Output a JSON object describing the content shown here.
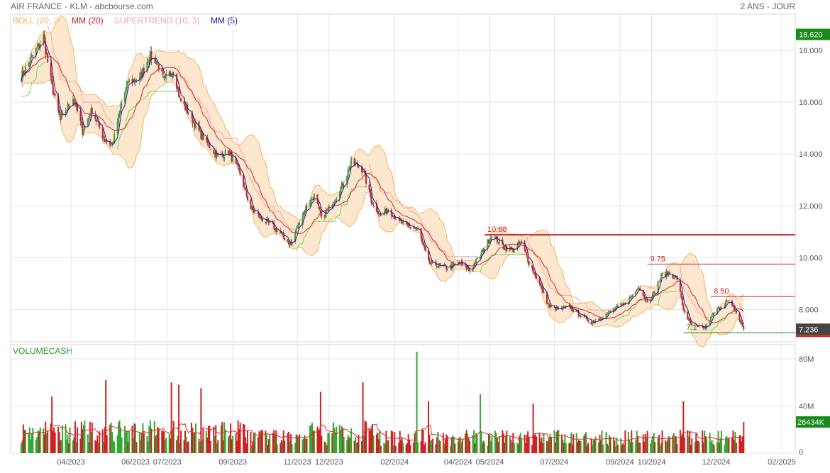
{
  "header": {
    "title": "AIR FRANCE - KLM - abcbourse.com",
    "period": "2 ANS - JOUR"
  },
  "legend": [
    {
      "label": "BOLL (20, 2)",
      "color": "#f5b266"
    },
    {
      "label": "MM (20)",
      "color": "#d42020"
    },
    {
      "label": "SUPERTREND (10, 3)",
      "color": "#f2a6a6"
    },
    {
      "label": "MM (5)",
      "color": "#1a1aa6"
    }
  ],
  "colors": {
    "up": "#33a833",
    "down": "#cc2222",
    "grid": "#e4e4e4",
    "boll_fill": "#fde3c6",
    "boll_line": "#f5b266",
    "supertrend_up": "#66dd66",
    "supertrend_down": "#f2a6a6",
    "badge": "#1a8a1a"
  },
  "chart_data": [
    {
      "type": "line",
      "name": "price",
      "y_ticks": [
        "18.000",
        "16.000",
        "14.000",
        "12.000",
        "10.000",
        "8.000"
      ],
      "ylim": [
        6.75,
        19.4
      ],
      "x_ticks": [
        "04/2023",
        "06/2023",
        "07/2023",
        "09/2023",
        "11/2023",
        "12/2023",
        "02/2024",
        "04/2024",
        "05/2024",
        "07/2024",
        "09/2024",
        "10/2024",
        "12/2024",
        "02/2025"
      ],
      "x_tick_dates": [
        "2023-04-01",
        "2023-06-01",
        "2023-07-01",
        "2023-09-01",
        "2023-11-01",
        "2023-12-01",
        "2024-02-01",
        "2024-04-01",
        "2024-05-01",
        "2024-07-01",
        "2024-09-01",
        "2024-10-01",
        "2024-12-01",
        "2025-02-01"
      ],
      "series_close": {
        "name": "",
        "points": [
          [
            "2023-02-13",
            17.0
          ],
          [
            "2023-02-24",
            17.8
          ],
          [
            "2023-03-06",
            18.5
          ],
          [
            "2023-03-14",
            16.6
          ],
          [
            "2023-03-22",
            15.3
          ],
          [
            "2023-04-03",
            16.2
          ],
          [
            "2023-04-12",
            14.9
          ],
          [
            "2023-04-21",
            15.7
          ],
          [
            "2023-05-02",
            14.6
          ],
          [
            "2023-05-10",
            14.3
          ],
          [
            "2023-05-18",
            15.8
          ],
          [
            "2023-05-25",
            16.8
          ],
          [
            "2023-06-05",
            16.9
          ],
          [
            "2023-06-14",
            17.8
          ],
          [
            "2023-06-21",
            17.6
          ],
          [
            "2023-06-28",
            16.8
          ],
          [
            "2023-07-07",
            17.3
          ],
          [
            "2023-07-13",
            16.1
          ],
          [
            "2023-07-21",
            15.6
          ],
          [
            "2023-08-01",
            14.8
          ],
          [
            "2023-08-10",
            14.3
          ],
          [
            "2023-08-18",
            13.9
          ],
          [
            "2023-08-28",
            14.1
          ],
          [
            "2023-09-08",
            13.2
          ],
          [
            "2023-09-18",
            11.9
          ],
          [
            "2023-09-28",
            11.5
          ],
          [
            "2023-10-09",
            11.2
          ],
          [
            "2023-10-19",
            10.8
          ],
          [
            "2023-10-26",
            10.5
          ],
          [
            "2023-11-03",
            11.4
          ],
          [
            "2023-11-10",
            12.0
          ],
          [
            "2023-11-17",
            12.4
          ],
          [
            "2023-11-24",
            11.5
          ],
          [
            "2023-12-01",
            11.9
          ],
          [
            "2023-12-08",
            12.4
          ],
          [
            "2023-12-15",
            12.9
          ],
          [
            "2023-12-22",
            13.7
          ],
          [
            "2024-01-02",
            13.4
          ],
          [
            "2024-01-10",
            12.2
          ],
          [
            "2024-01-19",
            11.6
          ],
          [
            "2024-01-26",
            11.9
          ],
          [
            "2024-02-05",
            11.4
          ],
          [
            "2024-02-14",
            11.2
          ],
          [
            "2024-02-23",
            11.1
          ],
          [
            "2024-03-04",
            9.8
          ],
          [
            "2024-03-13",
            9.7
          ],
          [
            "2024-03-21",
            9.6
          ],
          [
            "2024-04-03",
            9.8
          ],
          [
            "2024-04-12",
            9.5
          ],
          [
            "2024-04-22",
            10.1
          ],
          [
            "2024-04-29",
            10.6
          ],
          [
            "2024-05-03",
            10.9
          ],
          [
            "2024-05-14",
            10.4
          ],
          [
            "2024-05-23",
            10.3
          ],
          [
            "2024-05-31",
            10.6
          ],
          [
            "2024-06-07",
            9.8
          ],
          [
            "2024-06-17",
            9.0
          ],
          [
            "2024-06-26",
            8.1
          ],
          [
            "2024-07-05",
            8.0
          ],
          [
            "2024-07-15",
            8.1
          ],
          [
            "2024-07-25",
            7.8
          ],
          [
            "2024-08-05",
            7.5
          ],
          [
            "2024-08-15",
            7.7
          ],
          [
            "2024-08-26",
            8.0
          ],
          [
            "2024-09-05",
            8.2
          ],
          [
            "2024-09-12",
            8.5
          ],
          [
            "2024-09-19",
            8.9
          ],
          [
            "2024-09-26",
            8.3
          ],
          [
            "2024-10-03",
            8.6
          ],
          [
            "2024-10-10",
            9.3
          ],
          [
            "2024-10-17",
            9.4
          ],
          [
            "2024-10-25",
            9.2
          ],
          [
            "2024-10-31",
            8.0
          ],
          [
            "2024-11-07",
            7.4
          ],
          [
            "2024-11-14",
            7.3
          ],
          [
            "2024-11-21",
            7.3
          ],
          [
            "2024-11-28",
            7.8
          ],
          [
            "2024-12-05",
            8.1
          ],
          [
            "2024-12-12",
            8.3
          ],
          [
            "2024-12-19",
            7.95
          ],
          [
            "2024-12-27",
            7.236
          ]
        ]
      },
      "levels": [
        {
          "label": "10.88",
          "value": 10.88,
          "from": "2024-04-26",
          "color": "#d42020",
          "width": 2
        },
        {
          "label": "9.75",
          "value": 9.75,
          "from": "2024-09-27",
          "color": "#d42020",
          "width": 1
        },
        {
          "label": "8.50",
          "value": 8.5,
          "from": "2024-11-26",
          "color": "#d42020",
          "width": 1
        },
        {
          "label": "7.1",
          "value": 7.1,
          "from": "2024-10-31",
          "color": "#1a8a1a",
          "width": 1
        }
      ],
      "badges": [
        {
          "label": "18.620",
          "value": 18.62,
          "color": "#1a8a1a"
        },
        {
          "label": "7.236",
          "value": 7.236,
          "color": "#444444"
        }
      ]
    },
    {
      "type": "bar",
      "name": "VOLUMECASH",
      "y_ticks": [
        "80M",
        "40M",
        "0"
      ],
      "ylim": [
        0,
        92
      ],
      "unit": "M",
      "badge": {
        "label": "26434K",
        "value": 26.434
      },
      "highlight_bars": [
        {
          "date": "2023-03-14",
          "value": 48
        },
        {
          "date": "2023-05-04",
          "value": 62
        },
        {
          "date": "2023-07-05",
          "value": 60
        },
        {
          "date": "2023-07-12",
          "value": 58
        },
        {
          "date": "2023-08-02",
          "value": 55
        },
        {
          "date": "2023-11-23",
          "value": 52
        },
        {
          "date": "2024-01-02",
          "value": 60
        },
        {
          "date": "2024-02-22",
          "value": 86
        },
        {
          "date": "2024-03-04",
          "value": 44
        },
        {
          "date": "2024-04-22",
          "value": 50
        },
        {
          "date": "2024-06-11",
          "value": 42
        },
        {
          "date": "2024-10-31",
          "value": 44
        }
      ]
    }
  ]
}
